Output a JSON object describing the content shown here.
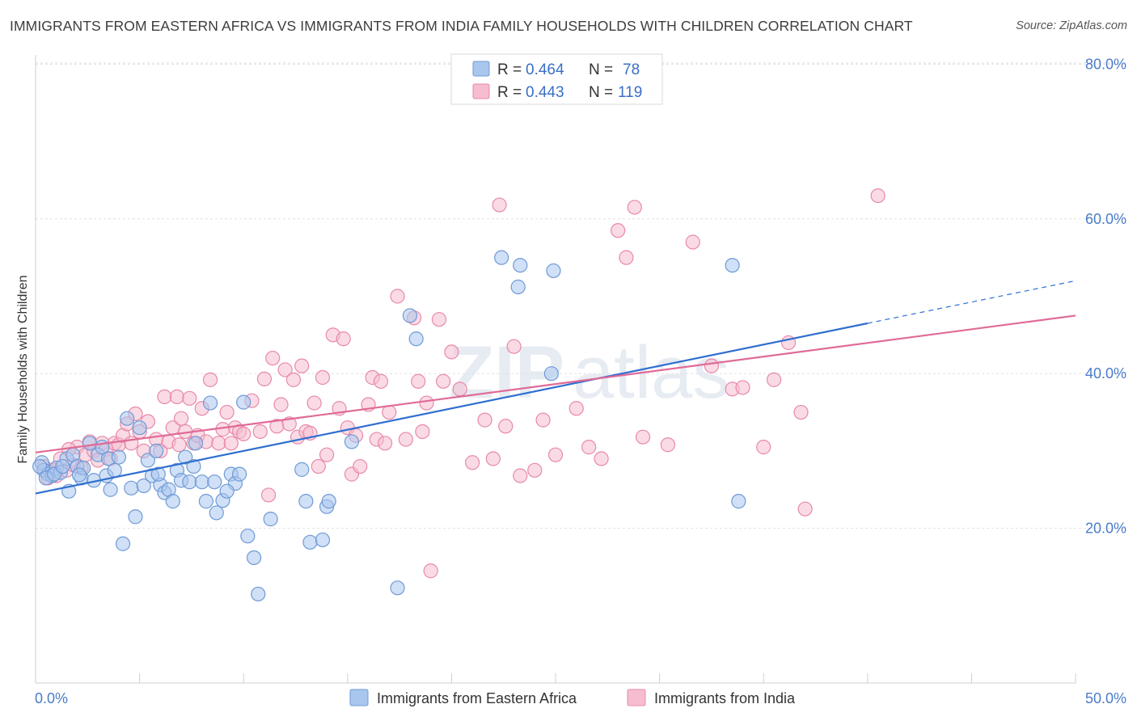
{
  "title": "IMMIGRANTS FROM EASTERN AFRICA VS IMMIGRANTS FROM INDIA FAMILY HOUSEHOLDS WITH CHILDREN CORRELATION CHART",
  "source": "Source: ZipAtlas.com",
  "watermark": {
    "part1": "ZIP",
    "part2": "atlas"
  },
  "legend": {
    "series1": {
      "r_label": "R = ",
      "r_value": "0.464",
      "n_label": "N = ",
      "n_value": "78"
    },
    "series2": {
      "r_label": "R = ",
      "r_value": "0.443",
      "n_label": "N = ",
      "n_value": "119"
    }
  },
  "colors": {
    "blue_fill": "#a9c6ee",
    "blue_stroke": "#6f9ad6",
    "blue_line": "#2f6fd0",
    "pink_fill": "#f6bdd0",
    "pink_stroke": "#e889aa",
    "pink_line": "#e06a97",
    "grid": "#e1e1e1"
  },
  "chart_data": {
    "type": "scatter",
    "title": "IMMIGRANTS FROM EASTERN AFRICA VS IMMIGRANTS FROM INDIA FAMILY HOUSEHOLDS WITH CHILDREN CORRELATION CHART",
    "xlabel": "",
    "ylabel": "Family Households with Children",
    "xlim": [
      0,
      50
    ],
    "ylim": [
      0,
      82
    ],
    "x_tick_labels": [
      "0.0%",
      "50.0%"
    ],
    "y_ticks": [
      20,
      40,
      60,
      80
    ],
    "y_tick_labels": [
      "20.0%",
      "40.0%",
      "60.0%",
      "80.0%"
    ],
    "grid": true,
    "legend_position": "top-center",
    "series": [
      {
        "name": "Immigrants from Eastern Africa",
        "color": "#a9c6ee",
        "trend": {
          "x": [
            0,
            40
          ],
          "y": [
            24.5,
            46.5
          ],
          "dashed_to": [
            50,
            52
          ]
        },
        "points": [
          [
            0.3,
            28.5
          ],
          [
            0.4,
            27.5
          ],
          [
            0.6,
            27
          ],
          [
            0.8,
            26.8
          ],
          [
            1.0,
            27.8
          ],
          [
            1.2,
            27.2
          ],
          [
            1.5,
            29
          ],
          [
            1.6,
            24.8
          ],
          [
            1.8,
            29.5
          ],
          [
            2.0,
            28
          ],
          [
            2.2,
            26.5
          ],
          [
            2.3,
            27.8
          ],
          [
            2.6,
            31
          ],
          [
            2.8,
            26.2
          ],
          [
            3.0,
            29.5
          ],
          [
            3.2,
            30.5
          ],
          [
            3.4,
            26.8
          ],
          [
            3.5,
            29
          ],
          [
            3.8,
            27.5
          ],
          [
            4.0,
            29.2
          ],
          [
            4.2,
            18
          ],
          [
            4.4,
            34.2
          ],
          [
            4.6,
            25.2
          ],
          [
            4.8,
            21.5
          ],
          [
            5.0,
            33
          ],
          [
            5.2,
            25.5
          ],
          [
            5.4,
            28.8
          ],
          [
            5.6,
            26.8
          ],
          [
            5.8,
            30
          ],
          [
            6.0,
            25.6
          ],
          [
            6.2,
            24.6
          ],
          [
            6.4,
            25
          ],
          [
            6.6,
            23.5
          ],
          [
            6.8,
            27.5
          ],
          [
            7.0,
            26.2
          ],
          [
            7.2,
            29.2
          ],
          [
            7.4,
            26
          ],
          [
            7.6,
            28
          ],
          [
            8.0,
            26
          ],
          [
            8.2,
            23.5
          ],
          [
            8.4,
            36.2
          ],
          [
            8.6,
            26
          ],
          [
            9.0,
            23.6
          ],
          [
            9.4,
            27
          ],
          [
            9.6,
            25.8
          ],
          [
            9.8,
            27
          ],
          [
            10.0,
            36.3
          ],
          [
            10.2,
            19
          ],
          [
            10.5,
            16.2
          ],
          [
            10.7,
            11.5
          ],
          [
            11.3,
            21.2
          ],
          [
            12.8,
            27.6
          ],
          [
            13.0,
            23.5
          ],
          [
            13.2,
            18.2
          ],
          [
            13.8,
            18.5
          ],
          [
            14.0,
            22.8
          ],
          [
            14.1,
            23.5
          ],
          [
            15.2,
            31.2
          ],
          [
            18.0,
            47.5
          ],
          [
            18.3,
            44.5
          ],
          [
            17.4,
            12.3
          ],
          [
            22.4,
            55
          ],
          [
            23.3,
            54
          ],
          [
            23.2,
            51.2
          ],
          [
            24.8,
            40
          ],
          [
            24.9,
            53.3
          ],
          [
            33.5,
            54
          ],
          [
            33.8,
            23.5
          ],
          [
            0.2,
            28
          ],
          [
            0.5,
            26.5
          ],
          [
            0.9,
            27
          ],
          [
            1.3,
            28
          ],
          [
            2.1,
            26.9
          ],
          [
            3.6,
            25
          ],
          [
            5.9,
            27
          ],
          [
            7.7,
            31
          ],
          [
            8.7,
            22
          ],
          [
            9.2,
            24.8
          ]
        ]
      },
      {
        "name": "Immigrants from India",
        "color": "#f6bdd0",
        "trend": {
          "x": [
            0,
            50
          ],
          "y": [
            29.8,
            47.5
          ]
        },
        "points": [
          [
            0.4,
            28
          ],
          [
            0.6,
            26.5
          ],
          [
            0.8,
            27.5
          ],
          [
            1.0,
            26.8
          ],
          [
            1.2,
            29
          ],
          [
            1.5,
            27.5
          ],
          [
            1.8,
            28.2
          ],
          [
            2.0,
            30.5
          ],
          [
            2.2,
            27.8
          ],
          [
            2.4,
            29.5
          ],
          [
            2.6,
            31.2
          ],
          [
            2.8,
            30
          ],
          [
            3.0,
            28.8
          ],
          [
            3.2,
            31
          ],
          [
            3.4,
            30.2
          ],
          [
            3.6,
            29
          ],
          [
            3.8,
            31
          ],
          [
            4.0,
            30.8
          ],
          [
            4.2,
            32
          ],
          [
            4.4,
            33.5
          ],
          [
            4.6,
            31
          ],
          [
            5.0,
            32.5
          ],
          [
            5.2,
            30
          ],
          [
            5.4,
            33.8
          ],
          [
            5.8,
            31.5
          ],
          [
            6.0,
            30
          ],
          [
            6.2,
            37
          ],
          [
            6.4,
            31.2
          ],
          [
            6.6,
            33
          ],
          [
            6.8,
            37
          ],
          [
            7.0,
            34.2
          ],
          [
            7.2,
            32.5
          ],
          [
            7.4,
            36.8
          ],
          [
            7.6,
            31
          ],
          [
            7.8,
            32
          ],
          [
            8.0,
            35.5
          ],
          [
            8.2,
            31.2
          ],
          [
            8.4,
            39.2
          ],
          [
            8.8,
            31
          ],
          [
            9.0,
            32.8
          ],
          [
            9.2,
            35
          ],
          [
            9.4,
            31
          ],
          [
            9.6,
            33
          ],
          [
            9.8,
            32.5
          ],
          [
            10.0,
            32.2
          ],
          [
            10.4,
            36.5
          ],
          [
            10.8,
            32.5
          ],
          [
            11.0,
            39.3
          ],
          [
            11.2,
            24.3
          ],
          [
            11.4,
            42
          ],
          [
            11.6,
            33.2
          ],
          [
            11.8,
            36
          ],
          [
            12.0,
            40.5
          ],
          [
            12.2,
            33.5
          ],
          [
            12.4,
            39.2
          ],
          [
            12.6,
            31.8
          ],
          [
            12.8,
            41
          ],
          [
            13.0,
            32.5
          ],
          [
            13.2,
            32.3
          ],
          [
            13.4,
            36.2
          ],
          [
            13.6,
            28
          ],
          [
            13.8,
            39.5
          ],
          [
            14.0,
            29.5
          ],
          [
            14.3,
            45
          ],
          [
            14.6,
            35.5
          ],
          [
            14.8,
            44.5
          ],
          [
            15.0,
            33
          ],
          [
            15.2,
            27
          ],
          [
            15.4,
            32
          ],
          [
            15.6,
            28
          ],
          [
            16.0,
            36
          ],
          [
            16.2,
            39.5
          ],
          [
            16.4,
            31.5
          ],
          [
            16.6,
            39
          ],
          [
            16.8,
            31
          ],
          [
            17.0,
            35
          ],
          [
            17.4,
            50
          ],
          [
            17.8,
            31.5
          ],
          [
            18.2,
            47.2
          ],
          [
            18.4,
            39
          ],
          [
            18.6,
            32.5
          ],
          [
            18.8,
            36.2
          ],
          [
            19.0,
            14.5
          ],
          [
            19.4,
            47
          ],
          [
            19.6,
            39
          ],
          [
            20.0,
            42.8
          ],
          [
            20.4,
            38
          ],
          [
            21.0,
            28.5
          ],
          [
            21.6,
            34
          ],
          [
            22.0,
            29
          ],
          [
            22.3,
            61.8
          ],
          [
            22.6,
            33.2
          ],
          [
            23.0,
            43.5
          ],
          [
            23.3,
            26.8
          ],
          [
            24.0,
            27.5
          ],
          [
            24.4,
            34
          ],
          [
            25.0,
            29.5
          ],
          [
            26.0,
            35.5
          ],
          [
            26.6,
            30.5
          ],
          [
            27.2,
            29
          ],
          [
            28.0,
            58.5
          ],
          [
            28.4,
            55
          ],
          [
            28.8,
            61.5
          ],
          [
            29.2,
            31.8
          ],
          [
            30.4,
            30.8
          ],
          [
            31.6,
            57
          ],
          [
            32.5,
            41
          ],
          [
            33.5,
            38
          ],
          [
            34.0,
            38.2
          ],
          [
            35.0,
            30.5
          ],
          [
            35.5,
            39.2
          ],
          [
            36.2,
            44
          ],
          [
            36.8,
            35
          ],
          [
            37.0,
            22.5
          ],
          [
            40.5,
            63
          ],
          [
            0.7,
            27.3
          ],
          [
            1.6,
            30.2
          ],
          [
            4.8,
            34.8
          ],
          [
            6.9,
            30.8
          ]
        ]
      }
    ]
  }
}
